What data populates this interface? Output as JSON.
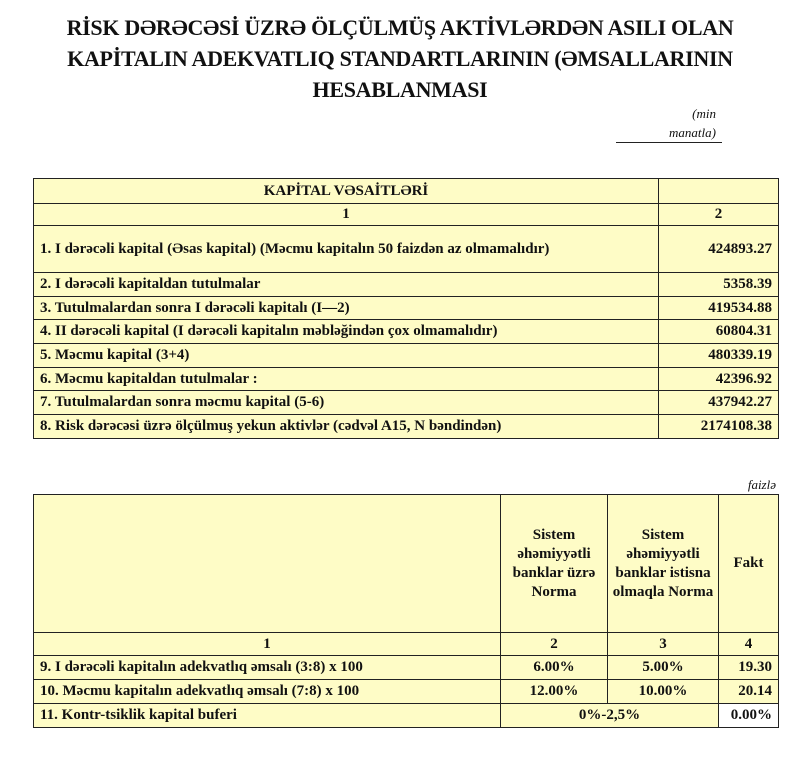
{
  "title": {
    "line1": "RİSK DƏRƏCƏSİ ÜZRƏ ÖLÇÜLMÜŞ AKTİVLƏRDƏN ASILI OLAN",
    "line2": "KAPİTALIN ADEKVATLIQ STANDARTLARININ (ƏMSALLARININ",
    "line3": "HESABLANMASI"
  },
  "unit_note": {
    "line1": "(min",
    "line2": "manatla)"
  },
  "capital_table": {
    "header": "KAPİTAL VƏSAİTLƏRİ",
    "col_numbers": [
      "1",
      "2"
    ],
    "rows": [
      {
        "label": "1. I dərəcəli kapital (Əsas kapital) (Məcmu kapitalın 50 faizdən  az olmamalıdır)",
        "value": "424893.27"
      },
      {
        "label": "2. I dərəcəli kapitaldan  tutulmalar",
        "value": "5358.39"
      },
      {
        "label": "3. Tutulmalardan  sonra I dərəcəli kapitalı (I—2)",
        "value": "419534.88"
      },
      {
        "label": "4. II dərəcəli  kapital (I dərəcəli  kapitalın  məbləğindən çox olmamalıdır)",
        "value": "60804.31"
      },
      {
        "label": "5. Məcmu kapital (3+4)",
        "value": "480339.19"
      },
      {
        "label": "6. Məcmu kapitaldan tutulmalar :",
        "value": "42396.92"
      },
      {
        "label": "7. Tutulmalardan  sonra məcmu kapital (5-6)",
        "value": "437942.27"
      },
      {
        "label": "8. Risk dərəcəsi üzrə ölçülmuş  yekun aktivlər  (cədvəl A15, N bəndindən)",
        "value": "2174108.38"
      }
    ]
  },
  "percent_note": "faizlə",
  "ratio_table": {
    "headers": [
      "",
      "Sistem əhəmiyyətli banklar üzrə Norma",
      "Sistem əhəmiyyətli banklar istisna olmaqla Norma",
      "Fakt"
    ],
    "col_numbers": [
      "1",
      "2",
      "3",
      "4"
    ],
    "rows": [
      {
        "label": "9.  I dərəcəli  kapitalın  adekvatlıq əmsalı (3:8) x 100",
        "norm_sib": "6.00%",
        "norm_other": "5.00%",
        "fact": "19.30"
      },
      {
        "label": "10. Məcmu kapitalın  adekvatlıq  əmsalı (7:8) x 100",
        "norm_sib": "12.00%",
        "norm_other": "10.00%",
        "fact": "20.14"
      }
    ],
    "buffer_row": {
      "label": "11. Kontr-tsiklik kapital buferi",
      "norm": "0%-2,5%",
      "fact": "0.00%"
    }
  },
  "colors": {
    "cell_background": "#fefcc6",
    "border": "#222222"
  }
}
